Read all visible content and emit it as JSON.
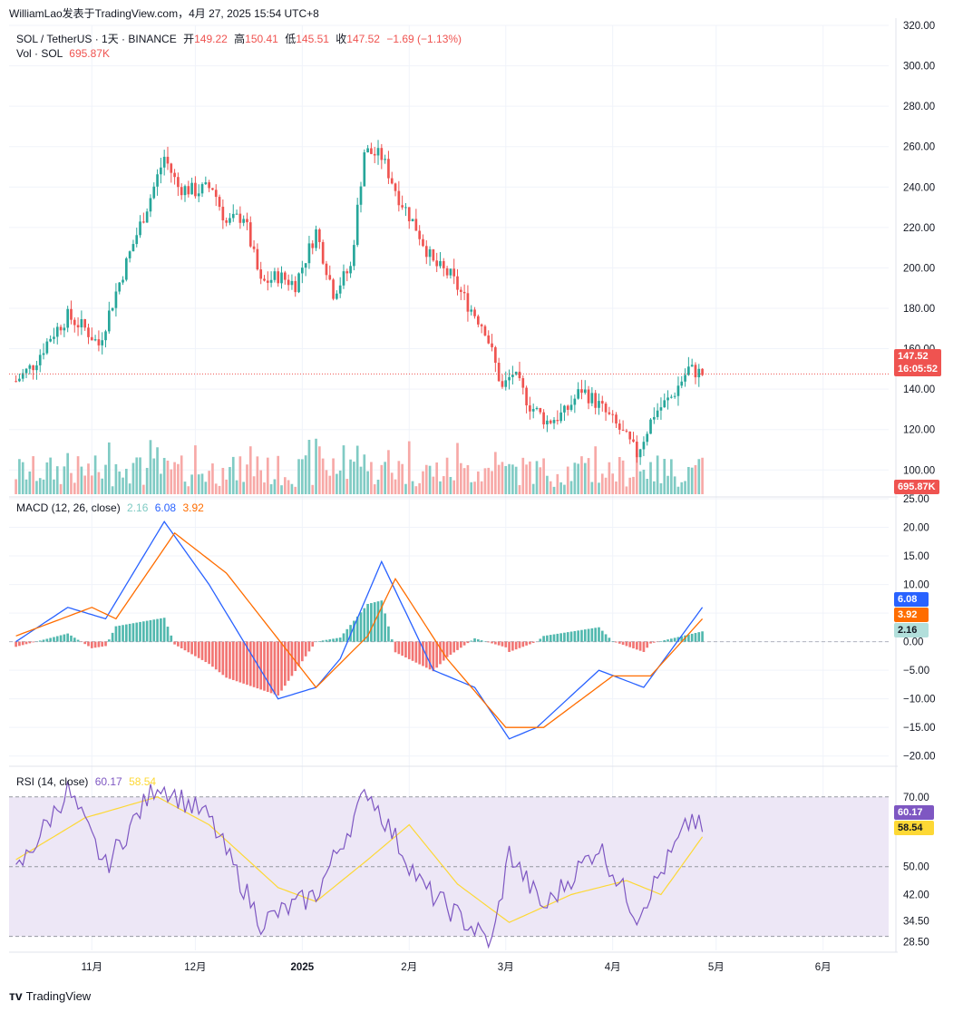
{
  "watermark": {
    "author": "WilliamLao发表于TradingView.com",
    "date": "4月 27, 2025 15:54 UTC+8"
  },
  "header": {
    "symbol": "SOL / TetherUS · 1天 · BINANCE",
    "open_label": "开",
    "open": "149.22",
    "high_label": "高",
    "high": "150.41",
    "low_label": "低",
    "low": "145.51",
    "close_label": "收",
    "close": "147.52",
    "change": "−1.69 (−1.13%)",
    "vol_label": "Vol · SOL",
    "vol_value": "695.87K"
  },
  "macd_legend": {
    "label": "MACD (12, 26, close)",
    "hist": "2.16",
    "macd": "6.08",
    "signal": "3.92"
  },
  "rsi_legend": {
    "label": "RSI (14, close)",
    "rsi": "60.17",
    "ma": "58.54"
  },
  "price_tags": {
    "last": "147.52",
    "countdown": "16:05:52",
    "volume": "695.87K"
  },
  "footer": {
    "brand": "TradingView"
  },
  "colors": {
    "up": "#26a69a",
    "down": "#ef5350",
    "macd": "#2962ff",
    "signal": "#ff6d00",
    "rsi": "#7e57c2",
    "rsi_ma": "#fdd835",
    "rsi_band": "#ede7f6"
  },
  "chart_data": [
    {
      "type": "candlestick",
      "title": "SOL / TetherUS · 1天 · BINANCE",
      "x_labels": [
        "11月",
        "12月",
        "2025",
        "2月",
        "3月",
        "4月",
        "5月",
        "6月"
      ],
      "y_ticks": [
        100,
        120,
        140,
        160,
        180,
        200,
        220,
        240,
        260,
        280,
        300,
        320
      ],
      "ylim": [
        88,
        320
      ],
      "close_path_points": [
        [
          "2024-10-10",
          144
        ],
        [
          "2024-10-15",
          152
        ],
        [
          "2024-10-20",
          166
        ],
        [
          "2024-10-25",
          176
        ],
        [
          "2024-10-30",
          170
        ],
        [
          "2024-11-03",
          162
        ],
        [
          "2024-11-08",
          188
        ],
        [
          "2024-11-13",
          212
        ],
        [
          "2024-11-18",
          235
        ],
        [
          "2024-11-22",
          255
        ],
        [
          "2024-11-26",
          240
        ],
        [
          "2024-12-01",
          238
        ],
        [
          "2024-12-06",
          240
        ],
        [
          "2024-12-10",
          222
        ],
        [
          "2024-12-15",
          226
        ],
        [
          "2024-12-20",
          192
        ],
        [
          "2024-12-25",
          196
        ],
        [
          "2024-12-30",
          192
        ],
        [
          "2025-01-05",
          218
        ],
        [
          "2025-01-10",
          188
        ],
        [
          "2025-01-15",
          200
        ],
        [
          "2025-01-19",
          258
        ],
        [
          "2025-01-24",
          255
        ],
        [
          "2025-01-29",
          235
        ],
        [
          "2025-02-03",
          220
        ],
        [
          "2025-02-08",
          202
        ],
        [
          "2025-02-13",
          196
        ],
        [
          "2025-02-18",
          182
        ],
        [
          "2025-02-23",
          170
        ],
        [
          "2025-02-28",
          140
        ],
        [
          "2025-03-03",
          148
        ],
        [
          "2025-03-08",
          132
        ],
        [
          "2025-03-13",
          124
        ],
        [
          "2025-03-18",
          128
        ],
        [
          "2025-03-23",
          140
        ],
        [
          "2025-03-28",
          132
        ],
        [
          "2025-04-03",
          120
        ],
        [
          "2025-04-08",
          108
        ],
        [
          "2025-04-13",
          128
        ],
        [
          "2025-04-18",
          136
        ],
        [
          "2025-04-23",
          150
        ],
        [
          "2025-04-27",
          147.52
        ]
      ],
      "last_price": 147.52
    },
    {
      "type": "bar",
      "title": "Vol · SOL",
      "last": "695.87K"
    },
    {
      "type": "line",
      "title": "MACD (12, 26, close)",
      "y_ticks": [
        -20,
        -15,
        -10,
        -5,
        0,
        5,
        10,
        15,
        20,
        25
      ],
      "ylim": [
        -21,
        25
      ],
      "series": [
        {
          "name": "MACD",
          "values": [
            [
              "2024-10-10",
              0
            ],
            [
              "2024-10-25",
              6
            ],
            [
              "2024-11-05",
              4
            ],
            [
              "2024-11-22",
              21
            ],
            [
              "2024-12-05",
              10
            ],
            [
              "2024-12-25",
              -10
            ],
            [
              "2025-01-05",
              -8
            ],
            [
              "2025-01-12",
              -3
            ],
            [
              "2025-01-24",
              14
            ],
            [
              "2025-02-08",
              -5
            ],
            [
              "2025-02-20",
              -8
            ],
            [
              "2025-03-02",
              -17
            ],
            [
              "2025-03-10",
              -15
            ],
            [
              "2025-03-28",
              -5
            ],
            [
              "2025-04-10",
              -8
            ],
            [
              "2025-04-27",
              6
            ]
          ]
        },
        {
          "name": "Signal",
          "values": [
            [
              "2024-10-10",
              1
            ],
            [
              "2024-11-01",
              6
            ],
            [
              "2024-11-08",
              4
            ],
            [
              "2024-11-25",
              19
            ],
            [
              "2024-12-10",
              12
            ],
            [
              "2025-01-05",
              -8
            ],
            [
              "2025-01-20",
              1
            ],
            [
              "2025-01-28",
              11
            ],
            [
              "2025-02-12",
              -3
            ],
            [
              "2025-03-01",
              -15
            ],
            [
              "2025-03-12",
              -15
            ],
            [
              "2025-04-01",
              -6
            ],
            [
              "2025-04-12",
              -6
            ],
            [
              "2025-04-27",
              4
            ]
          ]
        }
      ]
    },
    {
      "type": "line",
      "title": "RSI (14, close)",
      "y_ticks": [
        28.5,
        34.5,
        42,
        50,
        58.54,
        60.17,
        70
      ],
      "levels": [
        30,
        50,
        70
      ],
      "series": [
        {
          "name": "RSI",
          "values": [
            [
              "2024-10-10",
              48
            ],
            [
              "2024-10-25",
              72
            ],
            [
              "2024-11-05",
              50
            ],
            [
              "2024-11-20",
              74
            ],
            [
              "2024-12-05",
              64
            ],
            [
              "2024-12-20",
              34
            ],
            [
              "2025-01-05",
              42
            ],
            [
              "2025-01-20",
              72
            ],
            [
              "2025-02-05",
              44
            ],
            [
              "2025-02-25",
              28
            ],
            [
              "2025-03-02",
              54
            ],
            [
              "2025-03-12",
              38
            ],
            [
              "2025-03-28",
              56
            ],
            [
              "2025-04-08",
              36
            ],
            [
              "2025-04-24",
              64
            ],
            [
              "2025-04-27",
              60.17
            ]
          ]
        },
        {
          "name": "MA",
          "values": [
            [
              "2024-10-10",
              52
            ],
            [
              "2024-10-30",
              64
            ],
            [
              "2024-11-20",
              70
            ],
            [
              "2024-12-05",
              62
            ],
            [
              "2024-12-25",
              44
            ],
            [
              "2025-01-05",
              40
            ],
            [
              "2025-01-20",
              52
            ],
            [
              "2025-02-01",
              62
            ],
            [
              "2025-02-15",
              45
            ],
            [
              "2025-03-02",
              34
            ],
            [
              "2025-03-20",
              42
            ],
            [
              "2025-04-05",
              46
            ],
            [
              "2025-04-15",
              42
            ],
            [
              "2025-04-27",
              58.54
            ]
          ]
        }
      ]
    }
  ]
}
